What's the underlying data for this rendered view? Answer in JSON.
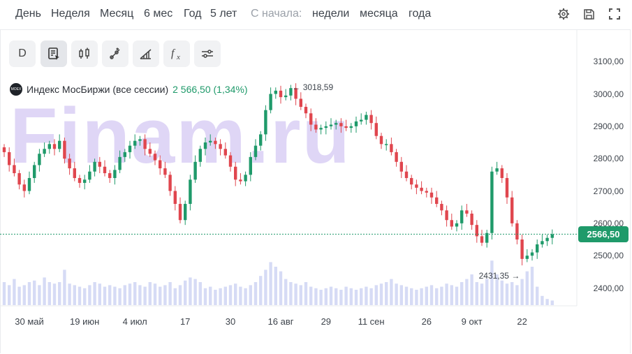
{
  "periods": [
    "День",
    "Неделя",
    "Месяц",
    "6 мес",
    "Год",
    "5 лет"
  ],
  "since_label": "С начала:",
  "since_periods": [
    "недели",
    "месяца",
    "года"
  ],
  "toolbar": {
    "interval_label": "D"
  },
  "top_icons": [
    "gear-icon",
    "save-icon",
    "fullscreen-icon"
  ],
  "tools": [
    "interval",
    "notes-icon",
    "candles-icon",
    "line-tool-icon",
    "ruler-tool-icon",
    "function-icon",
    "settings-icon"
  ],
  "watermark": "Finam.ru",
  "legend": {
    "name": "Индекс МосБиржи (все сессии)",
    "value": "2 566,50 (1,34%)"
  },
  "colors": {
    "up": "#1f9a6a",
    "down": "#e0464e",
    "volume": "#d6dbf5",
    "accent": "#1f9a6a"
  },
  "current_price": {
    "value": 2566.5,
    "label": "2566,50"
  },
  "annotations": {
    "high": {
      "value": 3018.59,
      "label": "3018,59"
    },
    "low": {
      "value": 2431.35,
      "label": "2431,35"
    }
  },
  "chart_data": {
    "type": "candlestick",
    "title": "Индекс МосБиржи (все сессии)",
    "y_range": [
      2345,
      3150
    ],
    "y_ticks": [
      "3100,00",
      "3000,00",
      "2900,00",
      "2800,00",
      "2700,00",
      "2600,00",
      "2500,00",
      "2400,00"
    ],
    "y_tick_values": [
      3100,
      3000,
      2900,
      2800,
      2700,
      2600,
      2500,
      2400
    ],
    "x_labels": [
      "30 май",
      "19 июн",
      "4 июл",
      "17",
      "30",
      "16 авг",
      "29",
      "11 сен",
      "26",
      "9 окт",
      "22"
    ],
    "label_indices": [
      5,
      16,
      26,
      36,
      45,
      55,
      64,
      73,
      84,
      93,
      103
    ],
    "closes": [
      2820,
      2780,
      2755,
      2720,
      2700,
      2740,
      2780,
      2815,
      2830,
      2845,
      2830,
      2855,
      2800,
      2770,
      2740,
      2725,
      2735,
      2760,
      2790,
      2775,
      2755,
      2740,
      2765,
      2805,
      2820,
      2840,
      2855,
      2860,
      2830,
      2815,
      2795,
      2770,
      2750,
      2700,
      2660,
      2610,
      2660,
      2735,
      2790,
      2830,
      2850,
      2855,
      2845,
      2830,
      2810,
      2775,
      2735,
      2730,
      2750,
      2805,
      2840,
      2875,
      2950,
      3000,
      3010,
      2990,
      2995,
      3018,
      2985,
      2960,
      2940,
      2905,
      2890,
      2895,
      2900,
      2905,
      2910,
      2900,
      2895,
      2900,
      2915,
      2920,
      2935,
      2910,
      2870,
      2845,
      2845,
      2820,
      2790,
      2760,
      2740,
      2720,
      2710,
      2700,
      2695,
      2680,
      2660,
      2640,
      2610,
      2590,
      2600,
      2640,
      2630,
      2595,
      2560,
      2540,
      2570,
      2760,
      2770,
      2740,
      2680,
      2600,
      2550,
      2490,
      2500,
      2510,
      2535,
      2545,
      2555,
      2566
    ],
    "volumes": [
      30,
      26,
      34,
      24,
      26,
      30,
      32,
      26,
      36,
      30,
      28,
      30,
      46,
      28,
      26,
      24,
      22,
      26,
      30,
      28,
      24,
      26,
      24,
      22,
      26,
      28,
      30,
      26,
      24,
      30,
      28,
      24,
      26,
      30,
      22,
      26,
      32,
      36,
      34,
      30,
      22,
      24,
      20,
      22,
      24,
      26,
      28,
      24,
      22,
      26,
      30,
      38,
      46,
      56,
      50,
      44,
      34,
      30,
      28,
      26,
      30,
      24,
      22,
      20,
      22,
      24,
      22,
      20,
      24,
      22,
      20,
      22,
      24,
      22,
      26,
      28,
      30,
      34,
      28,
      26,
      24,
      22,
      20,
      22,
      24,
      26,
      22,
      24,
      28,
      26,
      24,
      30,
      34,
      40,
      30,
      28,
      34,
      58,
      40,
      32,
      28,
      30,
      26,
      34,
      44,
      50,
      24,
      12,
      8,
      6
    ]
  }
}
